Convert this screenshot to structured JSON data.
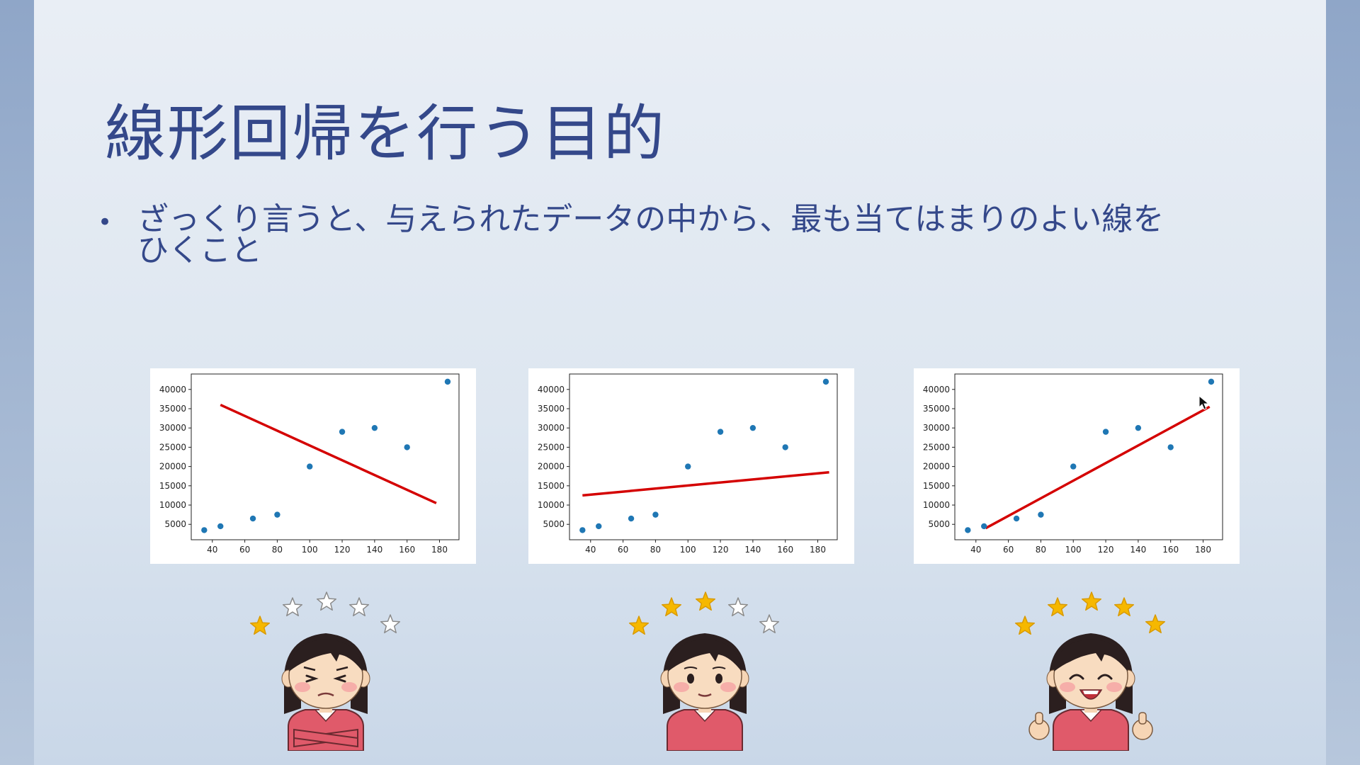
{
  "slide": {
    "title": "線形回帰を行う目的",
    "bullet": "ざっくり言うと、与えられたデータの中から、最も当てはまりのよい線をひくこと"
  },
  "colors": {
    "title": "#34488a",
    "point": "#1f77b4",
    "fit_line": "#d40000",
    "star_filled": "#f6b800",
    "star_empty": "#ffffff"
  },
  "chart_data": [
    {
      "type": "scatter",
      "x": [
        35,
        45,
        65,
        80,
        100,
        120,
        140,
        160,
        185
      ],
      "y": [
        3500,
        4500,
        6500,
        7500,
        20000,
        29000,
        30000,
        25000,
        42000
      ],
      "line": {
        "x": [
          45,
          178
        ],
        "y": [
          36000,
          10500
        ]
      },
      "xticks": [
        40,
        60,
        80,
        100,
        120,
        140,
        160,
        180
      ],
      "yticks": [
        5000,
        10000,
        15000,
        20000,
        25000,
        30000,
        35000,
        40000
      ],
      "xlim": [
        27,
        192
      ],
      "ylim": [
        1000,
        44000
      ],
      "stars_filled": 1
    },
    {
      "type": "scatter",
      "x": [
        35,
        45,
        65,
        80,
        100,
        120,
        140,
        160,
        185
      ],
      "y": [
        3500,
        4500,
        6500,
        7500,
        20000,
        29000,
        30000,
        25000,
        42000
      ],
      "line": {
        "x": [
          35,
          187
        ],
        "y": [
          12500,
          18500
        ]
      },
      "xticks": [
        40,
        60,
        80,
        100,
        120,
        140,
        160,
        180
      ],
      "yticks": [
        5000,
        10000,
        15000,
        20000,
        25000,
        30000,
        35000,
        40000
      ],
      "xlim": [
        27,
        192
      ],
      "ylim": [
        1000,
        44000
      ],
      "stars_filled": 3
    },
    {
      "type": "scatter",
      "x": [
        35,
        45,
        65,
        80,
        100,
        120,
        140,
        160,
        185
      ],
      "y": [
        3500,
        4500,
        6500,
        7500,
        20000,
        29000,
        30000,
        25000,
        42000
      ],
      "line": {
        "x": [
          46,
          184
        ],
        "y": [
          4000,
          35500
        ]
      },
      "xticks": [
        40,
        60,
        80,
        100,
        120,
        140,
        160,
        180
      ],
      "yticks": [
        5000,
        10000,
        15000,
        20000,
        25000,
        30000,
        35000,
        40000
      ],
      "xlim": [
        27,
        192
      ],
      "ylim": [
        1000,
        44000
      ],
      "stars_filled": 5
    }
  ],
  "illustrations": [
    {
      "icon": "frowning-woman-icon",
      "mood": "unsatisfied"
    },
    {
      "icon": "neutral-woman-icon",
      "mood": "neutral"
    },
    {
      "icon": "smiling-woman-thumbs-up-icon",
      "mood": "satisfied"
    }
  ],
  "cursor": {
    "icon": "mouse-pointer-icon"
  }
}
